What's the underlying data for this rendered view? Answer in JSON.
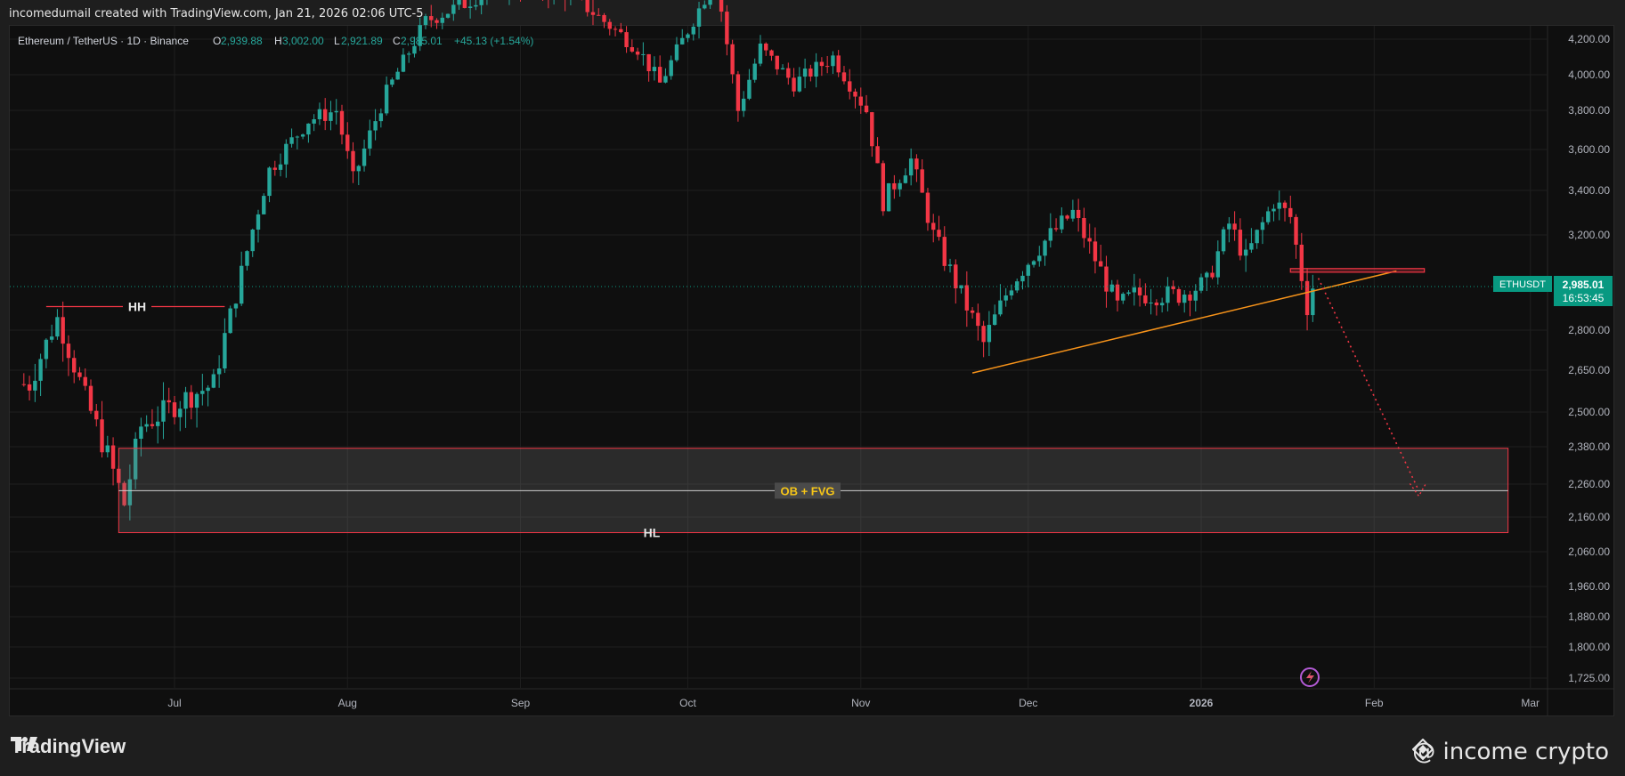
{
  "header": {
    "caption": "incomedumail created with TradingView.com, Jan 21, 2026 02:06 UTC-5"
  },
  "legend": {
    "symbol": "Ethereum / TetherUS · 1D · Binance",
    "o_label": "O",
    "o": "2,939.88",
    "h_label": "H",
    "h": "3,002.00",
    "l_label": "L",
    "l": "2,921.89",
    "c_label": "C",
    "c": "2,985.01",
    "change": "+45.13 (+1.54%)"
  },
  "price_tag": {
    "symbol": "ETHUSDT",
    "price": "2,985.01",
    "countdown": "16:53:45"
  },
  "annotations": {
    "hh": "HH",
    "hl": "HL",
    "zone": "OB + FVG"
  },
  "branding": {
    "logo": "TradingView",
    "watermark": "@ income crypto"
  },
  "colors": {
    "up": "#26a69a",
    "down": "#f23645",
    "trend": "#f7931a",
    "zone_border": "#f23645",
    "zone_text": "#f5c518"
  },
  "chart_data": {
    "type": "candlestick",
    "symbol": "ETHUSDT",
    "timeframe": "1D",
    "y_ticks": [
      4200,
      4000,
      3800,
      3600,
      3400,
      3200,
      2800,
      2650,
      2500,
      2380,
      2260,
      2160,
      2060,
      1960,
      1880,
      1800,
      1725
    ],
    "y_tick_labels": [
      "4,200.00",
      "4,000.00",
      "3,800.00",
      "3,600.00",
      "3,400.00",
      "3,200.00",
      "2,800.00",
      "2,650.00",
      "2,500.00",
      "2,380.00",
      "2,260.00",
      "2,160.00",
      "2,060.00",
      "1,960.00",
      "1,880.00",
      "1,800.00",
      "1,725.00"
    ],
    "x_labels": [
      {
        "label": "Jul",
        "date": "2025-07-01"
      },
      {
        "label": "Aug",
        "date": "2025-08-01"
      },
      {
        "label": "Sep",
        "date": "2025-09-01"
      },
      {
        "label": "Oct",
        "date": "2025-10-01"
      },
      {
        "label": "Nov",
        "date": "2025-11-01"
      },
      {
        "label": "Dec",
        "date": "2025-12-01"
      },
      {
        "label": "2026",
        "date": "2026-01-01"
      },
      {
        "label": "Feb",
        "date": "2026-02-01"
      },
      {
        "label": "Mar",
        "date": "2026-03-01"
      }
    ],
    "last_price": 2985.01,
    "ohlc_path": [
      [
        "2025-06-05",
        2600
      ],
      [
        "2025-06-10",
        2850
      ],
      [
        "2025-06-15",
        2550
      ],
      [
        "2025-06-20",
        2300
      ],
      [
        "2025-06-22",
        2200
      ],
      [
        "2025-06-25",
        2450
      ],
      [
        "2025-07-03",
        2550
      ],
      [
        "2025-07-08",
        2600
      ],
      [
        "2025-07-12",
        2950
      ],
      [
        "2025-07-18",
        3500
      ],
      [
        "2025-07-25",
        3750
      ],
      [
        "2025-07-30",
        3800
      ],
      [
        "2025-08-02",
        3450
      ],
      [
        "2025-08-08",
        3900
      ],
      [
        "2025-08-15",
        4300
      ],
      [
        "2025-08-22",
        4400
      ],
      [
        "2025-08-28",
        4500
      ],
      [
        "2025-09-10",
        4450
      ],
      [
        "2025-09-22",
        4150
      ],
      [
        "2025-09-26",
        3950
      ],
      [
        "2025-10-01",
        4250
      ],
      [
        "2025-10-06",
        4550
      ],
      [
        "2025-10-10",
        3800
      ],
      [
        "2025-10-14",
        4150
      ],
      [
        "2025-10-20",
        3950
      ],
      [
        "2025-10-27",
        4100
      ],
      [
        "2025-11-02",
        3800
      ],
      [
        "2025-11-05",
        3350
      ],
      [
        "2025-11-10",
        3550
      ],
      [
        "2025-11-14",
        3200
      ],
      [
        "2025-11-21",
        2850
      ],
      [
        "2025-11-23",
        2750
      ],
      [
        "2025-11-28",
        3000
      ],
      [
        "2025-12-03",
        3150
      ],
      [
        "2025-12-09",
        3300
      ],
      [
        "2025-12-12",
        3150
      ],
      [
        "2025-12-17",
        2900
      ],
      [
        "2025-12-20",
        2950
      ],
      [
        "2025-12-28",
        2950
      ],
      [
        "2026-01-02",
        3000
      ],
      [
        "2026-01-06",
        3250
      ],
      [
        "2026-01-09",
        3100
      ],
      [
        "2026-01-14",
        3350
      ],
      [
        "2026-01-17",
        3280
      ],
      [
        "2026-01-20",
        2900
      ],
      [
        "2026-01-21",
        2985
      ]
    ],
    "trendline": {
      "from": [
        "2025-11-21",
        2640
      ],
      "to": [
        "2026-02-05",
        3050
      ]
    },
    "hh_level": {
      "price": 2900,
      "from": "2025-06-08",
      "to": "2025-07-10"
    },
    "resistance_box": {
      "from": "2026-01-17",
      "to": "2026-02-10",
      "top": 3060,
      "bottom": 3045
    },
    "zone": {
      "from": "2025-06-21",
      "to": "2026-02-25",
      "top": 2375,
      "mid": 2240,
      "bottom": 2115
    },
    "projection": [
      [
        "2026-01-22",
        3020
      ],
      [
        "2026-02-09",
        2240
      ]
    ]
  }
}
